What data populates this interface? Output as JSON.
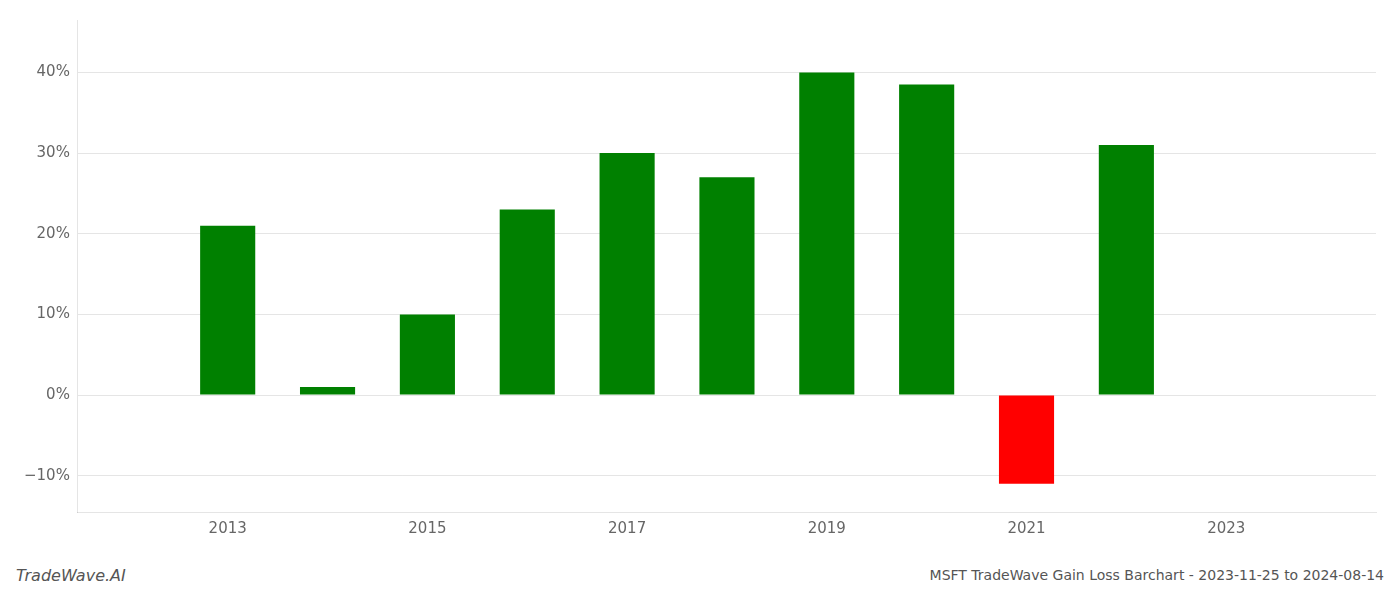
{
  "chart_data": {
    "type": "bar",
    "x": [
      2013,
      2014,
      2015,
      2016,
      2017,
      2018,
      2019,
      2020,
      2021,
      2022
    ],
    "values": [
      0.21,
      0.01,
      0.1,
      0.23,
      0.3,
      0.27,
      0.4,
      0.385,
      -0.11,
      0.31
    ],
    "colors": [
      "#008000",
      "#008000",
      "#008000",
      "#008000",
      "#008000",
      "#008000",
      "#008000",
      "#008000",
      "#ff0000",
      "#008000"
    ],
    "xlim": [
      2011.5,
      2024.5
    ],
    "xticks": [
      2013,
      2015,
      2017,
      2019,
      2021,
      2023
    ],
    "ylim": [
      -0.145,
      0.465
    ],
    "yticks": [
      {
        "value": -0.1,
        "label": "−10%"
      },
      {
        "value": 0.0,
        "label": "0%"
      },
      {
        "value": 0.1,
        "label": "10%"
      },
      {
        "value": 0.2,
        "label": "20%"
      },
      {
        "value": 0.3,
        "label": "30%"
      },
      {
        "value": 0.4,
        "label": "40%"
      }
    ],
    "grid": "y",
    "annotations": [
      "TradeWave.AI",
      "MSFT TradeWave Gain Loss Barchart - 2023-11-25 to 2024-08-14"
    ]
  }
}
